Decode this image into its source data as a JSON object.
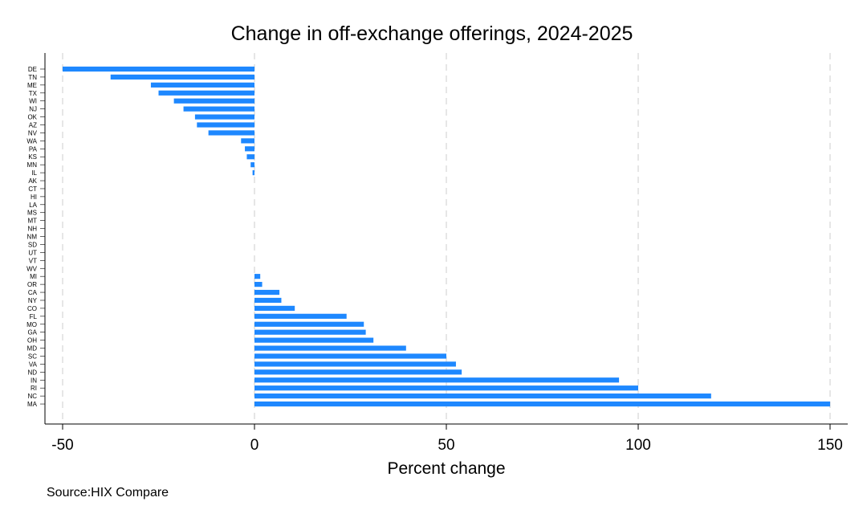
{
  "chart_data": {
    "type": "bar",
    "orientation": "horizontal",
    "title": "Change in off-exchange offerings, 2024-2025",
    "xlabel": "Percent change",
    "ylabel": "",
    "xlim": [
      -50,
      150
    ],
    "xticks": [
      -50,
      0,
      50,
      100,
      150
    ],
    "grid": "vertical-dashed",
    "bar_color": "#1e88ff",
    "categories": [
      "DE",
      "TN",
      "ME",
      "TX",
      "WI",
      "NJ",
      "OK",
      "AZ",
      "NV",
      "WA",
      "PA",
      "KS",
      "MN",
      "IL",
      "AK",
      "CT",
      "HI",
      "LA",
      "MS",
      "MT",
      "NH",
      "NM",
      "SD",
      "UT",
      "VT",
      "WV",
      "MI",
      "OR",
      "CA",
      "NY",
      "CO",
      "FL",
      "MO",
      "GA",
      "OH",
      "MD",
      "SC",
      "VA",
      "ND",
      "IN",
      "RI",
      "NC",
      "MA"
    ],
    "values": [
      -50,
      -37.5,
      -27,
      -25,
      -21,
      -18.5,
      -15.5,
      -15,
      -12,
      -3.5,
      -2.5,
      -2,
      -1,
      -0.5,
      0,
      0,
      0,
      0,
      0,
      0,
      0,
      0,
      0,
      0,
      0,
      0,
      1.5,
      2,
      6.5,
      7,
      10.5,
      24,
      28.5,
      29,
      31,
      39.5,
      50,
      52.5,
      54,
      95,
      100,
      119,
      150
    ]
  },
  "source": "Source:HIX Compare"
}
